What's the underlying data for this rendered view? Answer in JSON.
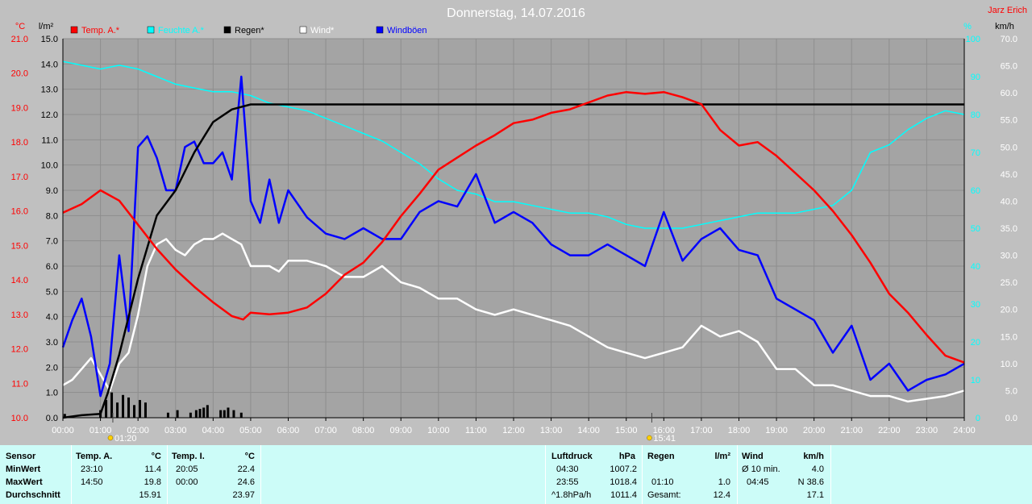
{
  "header": {
    "title": "Donnerstag, 14.07.2016",
    "station": "Jarz Erich",
    "unit_temp": "°C",
    "unit_rain": "l/m²",
    "unit_humidity": "%",
    "unit_wind": "km/h"
  },
  "legend": [
    {
      "label": "Temp. A.*",
      "color": "#ff0000"
    },
    {
      "label": "Feuchte A.*",
      "color": "#00ffff"
    },
    {
      "label": "Regen*",
      "color": "#000000"
    },
    {
      "label": "Wind*",
      "color": "#ffffff"
    },
    {
      "label": "Windböen",
      "color": "#0000ff"
    }
  ],
  "markers": [
    {
      "time": "01:20",
      "hour": 1.33
    },
    {
      "time": "15:41",
      "hour": 15.68
    }
  ],
  "chart_data": {
    "type": "line",
    "x_label_unit": "time of day",
    "xlim": [
      0,
      24
    ],
    "x_ticks": [
      "00:00",
      "01:00",
      "02:00",
      "03:00",
      "04:00",
      "05:00",
      "06:00",
      "07:00",
      "08:00",
      "09:00",
      "10:00",
      "11:00",
      "12:00",
      "13:00",
      "14:00",
      "15:00",
      "16:00",
      "17:00",
      "18:00",
      "19:00",
      "20:00",
      "21:00",
      "22:00",
      "23:00",
      "24:00"
    ],
    "axes": {
      "temp": {
        "unit": "°C",
        "range": [
          10.0,
          21.0
        ],
        "ticks": [
          "21.0",
          "20.0",
          "19.0",
          "18.0",
          "17.0",
          "16.0",
          "15.0",
          "14.0",
          "13.0",
          "12.0",
          "11.0",
          "10.0"
        ]
      },
      "rain": {
        "unit": "l/m²",
        "range": [
          0.0,
          15.0
        ],
        "ticks": [
          "15.0",
          "14.0",
          "13.0",
          "12.0",
          "11.0",
          "10.0",
          "9.0",
          "8.0",
          "7.0",
          "6.0",
          "5.0",
          "4.0",
          "3.0",
          "2.0",
          "1.0",
          "0.0"
        ]
      },
      "humidity": {
        "unit": "%",
        "range": [
          0,
          100
        ],
        "ticks": [
          "100",
          "90",
          "80",
          "70",
          "60",
          "50",
          "40",
          "30",
          "20",
          "10",
          "0"
        ]
      },
      "wind": {
        "unit": "km/h",
        "range": [
          0.0,
          70.0
        ],
        "ticks": [
          "70.0",
          "65.0",
          "60.0",
          "55.0",
          "50.0",
          "45.0",
          "40.0",
          "35.0",
          "30.0",
          "25.0",
          "20.0",
          "15.0",
          "10.0",
          "5.0",
          "0.0"
        ]
      }
    },
    "series": [
      {
        "name": "Temp. A.*",
        "axis": "temp",
        "color": "#ff0000",
        "x": [
          0,
          0.5,
          1,
          1.5,
          2,
          2.5,
          3,
          3.5,
          4,
          4.5,
          4.8,
          5,
          5.5,
          6,
          6.5,
          7,
          7.5,
          8,
          8.5,
          9,
          9.5,
          10,
          10.5,
          11,
          11.5,
          12,
          12.5,
          13,
          13.5,
          14,
          14.5,
          15,
          15.5,
          16,
          16.5,
          17,
          17.5,
          18,
          18.5,
          19,
          19.5,
          20,
          20.5,
          21,
          21.5,
          22,
          22.5,
          23,
          23.5,
          24
        ],
        "y": [
          15.95,
          16.2,
          16.6,
          16.3,
          15.6,
          14.9,
          14.3,
          13.8,
          13.35,
          12.95,
          12.85,
          13.05,
          13.0,
          13.05,
          13.2,
          13.6,
          14.15,
          14.5,
          15.1,
          15.85,
          16.5,
          17.2,
          17.55,
          17.9,
          18.2,
          18.55,
          18.65,
          18.85,
          18.95,
          19.15,
          19.35,
          19.45,
          19.4,
          19.45,
          19.3,
          19.1,
          18.35,
          17.9,
          18.0,
          17.6,
          17.1,
          16.6,
          16.0,
          15.3,
          14.5,
          13.6,
          13.05,
          12.4,
          11.8,
          11.6
        ]
      },
      {
        "name": "Feuchte A.*",
        "axis": "humidity",
        "color": "#00ffff",
        "x": [
          0,
          0.5,
          1,
          1.5,
          2,
          2.5,
          3,
          3.5,
          4,
          4.5,
          5,
          5.5,
          6,
          6.5,
          7,
          7.5,
          8,
          8.5,
          9,
          9.5,
          10,
          10.5,
          11,
          11.5,
          12,
          12.5,
          13,
          13.5,
          14,
          14.5,
          15,
          15.5,
          16,
          16.5,
          17,
          17.5,
          18,
          18.5,
          19,
          19.5,
          20,
          20.5,
          21,
          21.5,
          22,
          22.5,
          23,
          23.5,
          24
        ],
        "y": [
          94,
          93,
          92,
          93,
          92,
          90,
          88,
          87,
          86,
          86,
          85,
          83,
          82,
          81,
          79,
          77,
          75,
          73,
          70,
          67,
          63,
          60,
          59,
          57,
          57,
          56,
          55,
          54,
          54,
          53,
          51,
          50,
          50,
          50,
          51,
          52,
          53,
          54,
          54,
          54,
          55,
          56,
          60,
          70,
          72,
          76,
          79,
          81,
          80
        ]
      },
      {
        "name": "Regen*",
        "axis": "rain",
        "color": "#000000",
        "x": [
          0,
          0.5,
          1,
          1.2,
          1.5,
          2,
          2.5,
          3,
          3.5,
          4,
          4.5,
          5,
          5.5,
          6,
          24
        ],
        "y": [
          0,
          0.1,
          0.15,
          1.0,
          2.5,
          5.5,
          8.0,
          9.0,
          10.5,
          11.7,
          12.2,
          12.4,
          12.4,
          12.4,
          12.4
        ]
      },
      {
        "name": "Wind*",
        "axis": "wind",
        "color": "#ffffff",
        "x": [
          0,
          0.25,
          0.5,
          0.75,
          1,
          1.25,
          1.5,
          1.75,
          2,
          2.25,
          2.5,
          2.75,
          3,
          3.25,
          3.5,
          3.75,
          4,
          4.25,
          4.5,
          4.75,
          5,
          5.25,
          5.5,
          5.75,
          6,
          6.5,
          7,
          7.5,
          8,
          8.5,
          9,
          9.5,
          10,
          10.5,
          11,
          11.5,
          12,
          12.5,
          13,
          13.5,
          14,
          14.5,
          15,
          15.5,
          16,
          16.5,
          17,
          17.5,
          18,
          18.5,
          19,
          19.5,
          20,
          20.5,
          21,
          21.5,
          22,
          22.5,
          23,
          23.5,
          24
        ],
        "y": [
          6,
          7,
          9,
          11,
          8,
          5,
          10,
          12,
          19,
          28,
          32,
          33,
          31,
          30,
          32,
          33,
          33,
          34,
          33,
          32,
          28,
          28,
          28,
          27,
          29,
          29,
          28,
          26,
          26,
          28,
          25,
          24,
          22,
          22,
          20,
          19,
          20,
          19,
          18,
          17,
          15,
          13,
          12,
          11,
          12,
          13,
          17,
          15,
          16,
          14,
          9,
          9,
          6,
          6,
          5,
          4,
          4,
          3,
          3.5,
          4,
          5
        ]
      },
      {
        "name": "Windböen",
        "axis": "wind",
        "color": "#0000ff",
        "x": [
          0,
          0.25,
          0.5,
          0.75,
          1,
          1.25,
          1.5,
          1.75,
          2,
          2.25,
          2.5,
          2.75,
          3,
          3.25,
          3.5,
          3.75,
          4,
          4.25,
          4.5,
          4.75,
          5,
          5.25,
          5.5,
          5.75,
          6,
          6.5,
          7,
          7.5,
          8,
          8.5,
          9,
          9.5,
          10,
          10.5,
          11,
          11.5,
          12,
          12.5,
          13,
          13.5,
          14,
          14.5,
          15,
          15.5,
          16,
          16.5,
          17,
          17.5,
          18,
          18.5,
          19,
          19.5,
          20,
          20.5,
          21,
          21.5,
          22,
          22.5,
          23,
          23.5,
          24
        ],
        "y": [
          13,
          18,
          22,
          15,
          4,
          10,
          30,
          16,
          50,
          52,
          48,
          42,
          42,
          50,
          51,
          47,
          47,
          49,
          44,
          63,
          40,
          36,
          44,
          36,
          42,
          37,
          34,
          33,
          35,
          33,
          33,
          38,
          40,
          39,
          45,
          36,
          38,
          36,
          32,
          30,
          30,
          32,
          30,
          28,
          38,
          29,
          33,
          35,
          31,
          30,
          22,
          20,
          18,
          12,
          17,
          7,
          10,
          5,
          7,
          8,
          10
        ]
      },
      {
        "name": "Regen (Intervall)",
        "axis": "rain",
        "color": "#000000",
        "type": "bar",
        "x": [
          0.05,
          1.0,
          1.15,
          1.3,
          1.45,
          1.6,
          1.75,
          1.9,
          2.05,
          2.2,
          2.8,
          3.05,
          3.4,
          3.55,
          3.65,
          3.75,
          3.85,
          4.2,
          4.3,
          4.4,
          4.55,
          4.75
        ],
        "y": [
          0.15,
          0.3,
          0.7,
          1.0,
          0.6,
          0.9,
          0.8,
          0.5,
          0.7,
          0.6,
          0.2,
          0.3,
          0.2,
          0.3,
          0.35,
          0.4,
          0.5,
          0.3,
          0.3,
          0.4,
          0.3,
          0.2
        ]
      }
    ]
  },
  "table": {
    "sensor": {
      "header": "Sensor",
      "rows": [
        "MinWert",
        "MaxWert",
        "Durchschnitt"
      ]
    },
    "temp_a": {
      "header": "Temp. A.",
      "unit": "°C",
      "time": [
        "23:10",
        "14:50",
        ""
      ],
      "value": [
        "11.4",
        "19.8",
        "15.91"
      ]
    },
    "temp_i": {
      "header": "Temp. I.",
      "unit": "°C",
      "time": [
        "20:05",
        "00:00",
        ""
      ],
      "value": [
        "22.4",
        "24.6",
        "23.97"
      ]
    },
    "pressure": {
      "header": "Luftdruck",
      "unit": "hPa",
      "time": [
        "04:30",
        "23:55",
        "^1.8hPa/h"
      ],
      "value": [
        "1007.2",
        "1018.4",
        "1011.4"
      ]
    },
    "rain": {
      "header": "Regen",
      "unit": "l/m²",
      "time": [
        "",
        "01:10",
        "Gesamt:"
      ],
      "value": [
        "",
        "1.0",
        "12.4"
      ]
    },
    "wind": {
      "header": "Wind",
      "unit": "km/h",
      "time": [
        "Ø 10 min.",
        "04:45",
        ""
      ],
      "value": [
        "4.0",
        "N 38.6",
        "17.1"
      ]
    }
  }
}
